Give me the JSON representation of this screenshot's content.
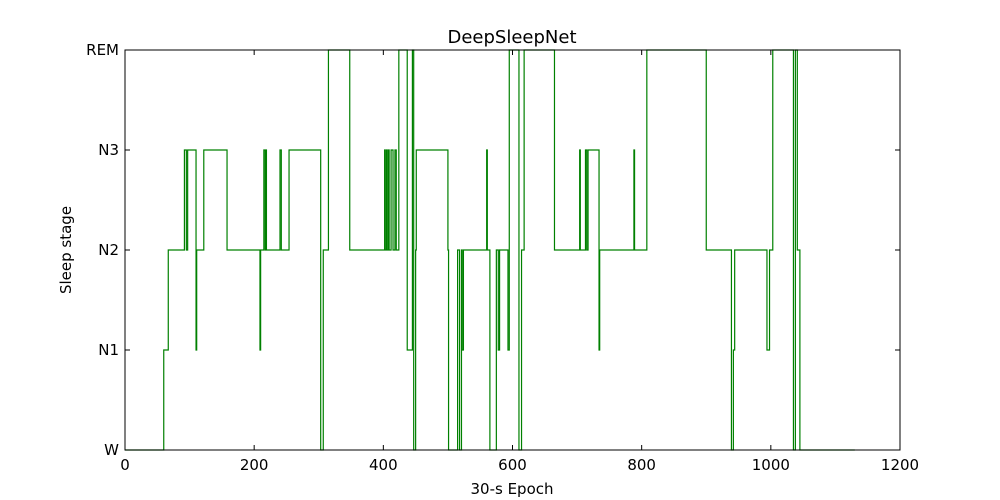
{
  "chart_data": {
    "type": "line",
    "title": "DeepSleepNet",
    "xlabel": "30-s Epoch",
    "ylabel": "Sleep stage",
    "xlim": [
      0,
      1200
    ],
    "ylim": [
      0,
      4
    ],
    "x_ticks": [
      0,
      200,
      400,
      600,
      800,
      1000,
      1200
    ],
    "y_ticks": [
      {
        "value": 0,
        "label": "W"
      },
      {
        "value": 1,
        "label": "N1"
      },
      {
        "value": 2,
        "label": "N2"
      },
      {
        "value": 3,
        "label": "N3"
      },
      {
        "value": 4,
        "label": "REM"
      }
    ],
    "grid": false,
    "series": [
      {
        "color": "#008000",
        "style": "step",
        "x": [
          0,
          60,
          67,
          92,
          95,
          97,
          99,
          110,
          111,
          113,
          122,
          158,
          209,
          210,
          215,
          217,
          218,
          219,
          222,
          224,
          240,
          242,
          245,
          254,
          303,
          307,
          315,
          319,
          348,
          402,
          403,
          405,
          406,
          408,
          409,
          411,
          412,
          415,
          418,
          420,
          424,
          434,
          437,
          445,
          447,
          450,
          451,
          500,
          501,
          515,
          518,
          521,
          522,
          524,
          526,
          560,
          561,
          565,
          575,
          578,
          580,
          593,
          595,
          600,
          610,
          614,
          618,
          665,
          674,
          704,
          705,
          710,
          711,
          713,
          715,
          716,
          717,
          718,
          720,
          734,
          735,
          736,
          740,
          788,
          789,
          808,
          900,
          939,
          942,
          944,
          994,
          998,
          1003,
          1005,
          1035,
          1038,
          1041,
          1045,
          1130
        ],
        "values": [
          0,
          1,
          2,
          3,
          2,
          3,
          3,
          1,
          2,
          2,
          3,
          2,
          1,
          2,
          3,
          2,
          3,
          2,
          2,
          2,
          3,
          2,
          2,
          3,
          0,
          2,
          4,
          4,
          2,
          3,
          2,
          3,
          2,
          3,
          2,
          2,
          3,
          2,
          3,
          2,
          4,
          4,
          1,
          4,
          0,
          2,
          3,
          2,
          0,
          2,
          0,
          2,
          1,
          2,
          2,
          3,
          2,
          0,
          2,
          1,
          2,
          1,
          4,
          4,
          0,
          2,
          4,
          2,
          2,
          3,
          2,
          2,
          2,
          3,
          2,
          2,
          3,
          3,
          3,
          1,
          2,
          2,
          2,
          3,
          2,
          4,
          2,
          0,
          1,
          2,
          1,
          2,
          4,
          4,
          0,
          4,
          2,
          0,
          0
        ]
      }
    ]
  }
}
